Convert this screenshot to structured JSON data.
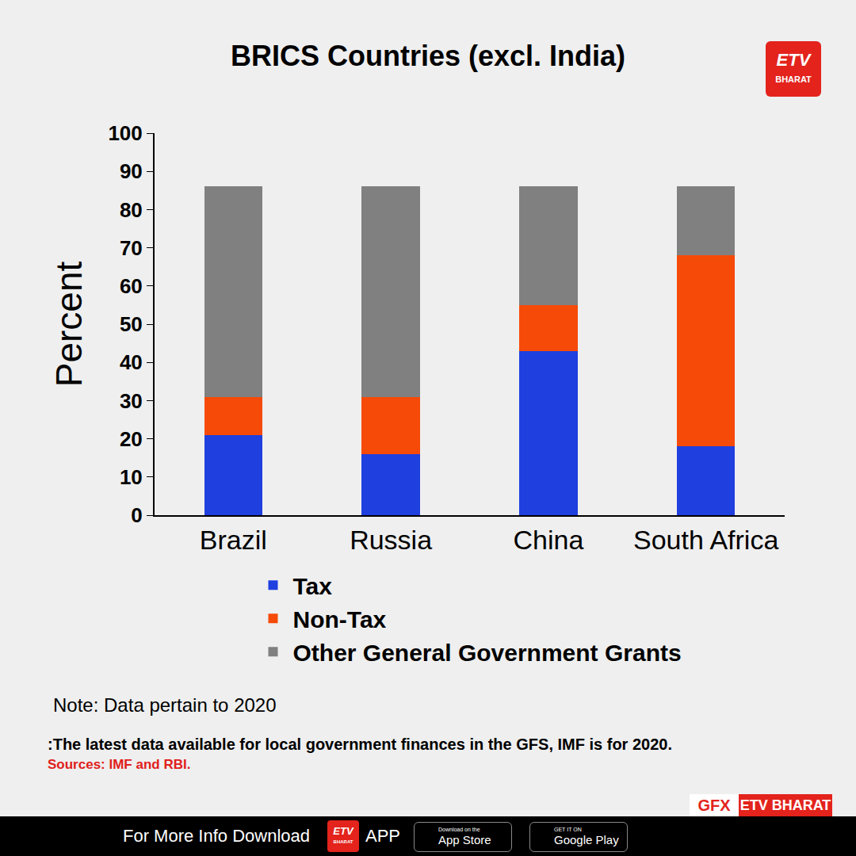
{
  "chart_data": {
    "type": "bar",
    "stacked": true,
    "title": "BRICS Countries (excl. India)",
    "y_label": "Percent",
    "categories": [
      "Brazil",
      "Russia",
      "China",
      "South Africa"
    ],
    "series": [
      {
        "name": "Tax",
        "color": "#1f3fdf",
        "values": [
          21,
          16,
          43,
          18
        ]
      },
      {
        "name": "Non-Tax",
        "color": "#f64a08",
        "values": [
          10,
          15,
          12,
          50
        ]
      },
      {
        "name": "Other General Government Grants",
        "color": "#808080",
        "values": [
          55,
          55,
          31,
          18
        ]
      }
    ],
    "ylim": [
      0,
      100
    ],
    "yticks": [
      0,
      10,
      20,
      30,
      40,
      50,
      60,
      70,
      80,
      90,
      100
    ],
    "grid": false,
    "legend": "bottom",
    "annotations": [
      "Note: Data pertain to 2020",
      ":The latest data available for local government finances in the GFS, IMF is for 2020.",
      "Sources: IMF and RBI."
    ]
  },
  "page": {
    "logo": [
      "ETV",
      "BHARAT"
    ],
    "credit": [
      "GFX",
      "ETV BHARAT"
    ],
    "footer": {
      "text": "For More Info Download",
      "app": "APP",
      "badges": [
        [
          "Download on the",
          "App Store"
        ],
        [
          "GET IT ON",
          "Google Play"
        ]
      ]
    }
  }
}
